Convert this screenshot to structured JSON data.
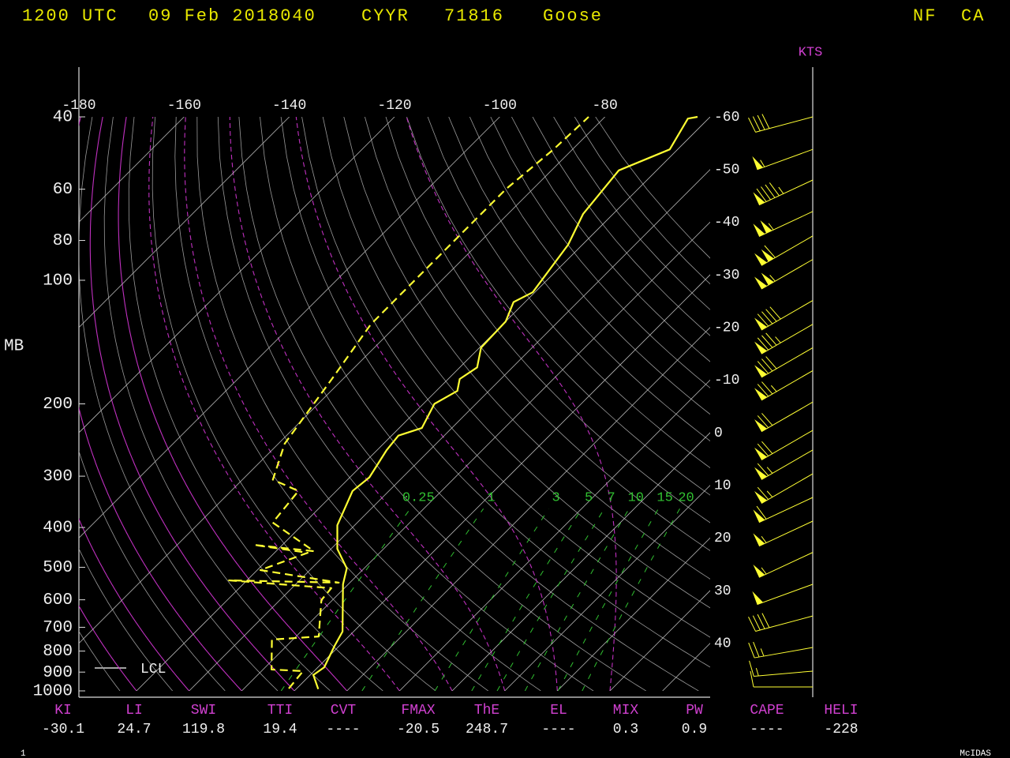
{
  "chart_data": {
    "type": "skewt",
    "header": [
      "1200 UTC",
      "09 Feb 2018040",
      "CYYR",
      "71816",
      "Goose",
      "NF",
      "CA"
    ],
    "y_label": "MB",
    "wind_unit": "KTS",
    "ylim": [
      1000,
      40
    ],
    "log_y": true,
    "yticks": [
      40,
      60,
      80,
      100,
      200,
      300,
      400,
      500,
      600,
      700,
      800,
      900,
      1000
    ],
    "xlim": [
      -180,
      -60
    ],
    "xticks": [
      -180,
      -160,
      -140,
      -120,
      -100,
      -80
    ],
    "temp_ticks_right": [
      -60,
      -50,
      -40,
      -30,
      -20,
      -10,
      0,
      10,
      20,
      30,
      40
    ],
    "mixing_ratios": [
      0.25,
      1,
      3,
      5,
      7,
      10,
      15,
      20
    ],
    "series": [
      {
        "color": "#ffff33",
        "dashed": false,
        "pressure": [
          990,
          915,
          876,
          777,
          717,
          550,
          503,
          451,
          395,
          326,
          302,
          259,
          239,
          229,
          200,
          186,
          174,
          163,
          146,
          126,
          113,
          107,
          82,
          69,
          54,
          48,
          40.4,
          40
        ],
        "values": [
          -25.8,
          -29.4,
          -28.8,
          -30.9,
          -32.1,
          -41,
          -43.3,
          -48.8,
          -53.3,
          -56.9,
          -56.3,
          -58.2,
          -58.7,
          -55.7,
          -57.9,
          -56,
          -57.8,
          -56.7,
          -59.7,
          -60,
          -62.2,
          -60.4,
          -62.7,
          -65.7,
          -67.2,
          -61.5,
          -63.9,
          -62.4
        ]
      },
      {
        "color": "#ffff33",
        "dashed": true,
        "pressure": [
          987,
          895,
          887,
          750,
          737,
          601,
          562,
          538,
          545,
          508,
          461,
          441,
          457,
          389,
          326,
          306,
          250,
          222,
          174,
          128,
          112,
          85,
          60,
          48,
          40
        ],
        "values": [
          -31.5,
          -32.1,
          -38.4,
          -44,
          -35.7,
          -42.1,
          -42.5,
          -63.4,
          -42.1,
          -59.4,
          -53.7,
          -65.4,
          -52.8,
          -66.1,
          -67.2,
          -74.2,
          -78.8,
          -79.9,
          -82.1,
          -85.1,
          -85.1,
          -85.1,
          -85.1,
          -83.6,
          -83.1
        ]
      }
    ],
    "winds": {
      "color": "#ffff33",
      "pressure": [
        40,
        48,
        57,
        68,
        78,
        89,
        112,
        128,
        146,
        166,
        198,
        232,
        259,
        296,
        338,
        386,
        460,
        550,
        657,
        784,
        895,
        978
      ],
      "direction": [
        255,
        250,
        245,
        245,
        240,
        240,
        240,
        240,
        240,
        240,
        240,
        240,
        240,
        240,
        245,
        245,
        245,
        250,
        255,
        260,
        265,
        270
      ],
      "speed": [
        40,
        55,
        95,
        105,
        110,
        105,
        90,
        85,
        80,
        75,
        70,
        70,
        65,
        65,
        60,
        55,
        55,
        50,
        40,
        25,
        15,
        10
      ]
    },
    "lcl_label": "LCL",
    "indices": [
      {
        "label": "KI",
        "value": -30.1
      },
      {
        "label": "LI",
        "value": 24.7
      },
      {
        "label": "SWI",
        "value": 119.8
      },
      {
        "label": "TTI",
        "value": 19.4
      },
      {
        "label": "CVT",
        "value": "----"
      },
      {
        "label": "FMAX",
        "value": -20.5
      },
      {
        "label": "ThE",
        "value": 248.7
      },
      {
        "label": "EL",
        "value": "----"
      },
      {
        "label": "MIX",
        "value": 0.3
      },
      {
        "label": "PW",
        "value": 0.9
      },
      {
        "label": "CAPE",
        "value": "----"
      },
      {
        "label": "HELI",
        "value": -228
      }
    ],
    "footer_left": "1",
    "footer_right": "McIDAS"
  }
}
